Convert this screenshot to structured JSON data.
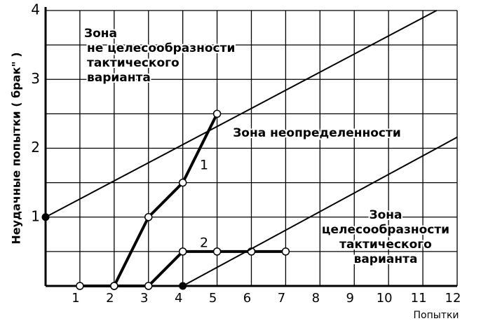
{
  "chart_data": {
    "type": "line",
    "y_label": "Неудачные попытки ( брак\" )",
    "x_label": "Попытки",
    "xlim": [
      0,
      12
    ],
    "ylim": [
      0,
      4
    ],
    "xticks": [
      1,
      2,
      3,
      4,
      5,
      6,
      7,
      8,
      9,
      10,
      11,
      12
    ],
    "yticks": [
      1,
      2,
      3,
      4
    ],
    "ygrid": [
      0.5,
      1,
      1.5,
      2,
      2.5,
      3,
      3.5,
      4
    ],
    "grid": true,
    "series": [
      {
        "name": "1",
        "color": "#000000",
        "marker": "open",
        "width": 4,
        "x": [
          1,
          2,
          3,
          4,
          5
        ],
        "values": [
          0,
          0,
          1,
          1.5,
          2.5
        ]
      },
      {
        "name": "2",
        "color": "#000000",
        "marker": "open",
        "width": 4,
        "x": [
          2,
          3,
          4,
          5,
          6,
          7
        ],
        "values": [
          0,
          0,
          0.5,
          0.5,
          0.5,
          0.5
        ]
      },
      {
        "color": "#000000",
        "marker": "filled-start",
        "width": 2,
        "x": [
          0,
          11.4
        ],
        "values": [
          1,
          4
        ]
      },
      {
        "color": "#000000",
        "marker": "filled-start",
        "width": 2,
        "x": [
          4,
          12
        ],
        "values": [
          0,
          2.16
        ]
      }
    ],
    "annotations": [
      [
        "Зона",
        "не целесообразности",
        "тактического",
        "варианта"
      ],
      [
        "Зона неопределенности"
      ],
      [
        "Зона",
        "целесообразности",
        "тактического",
        "варианта"
      ]
    ]
  }
}
